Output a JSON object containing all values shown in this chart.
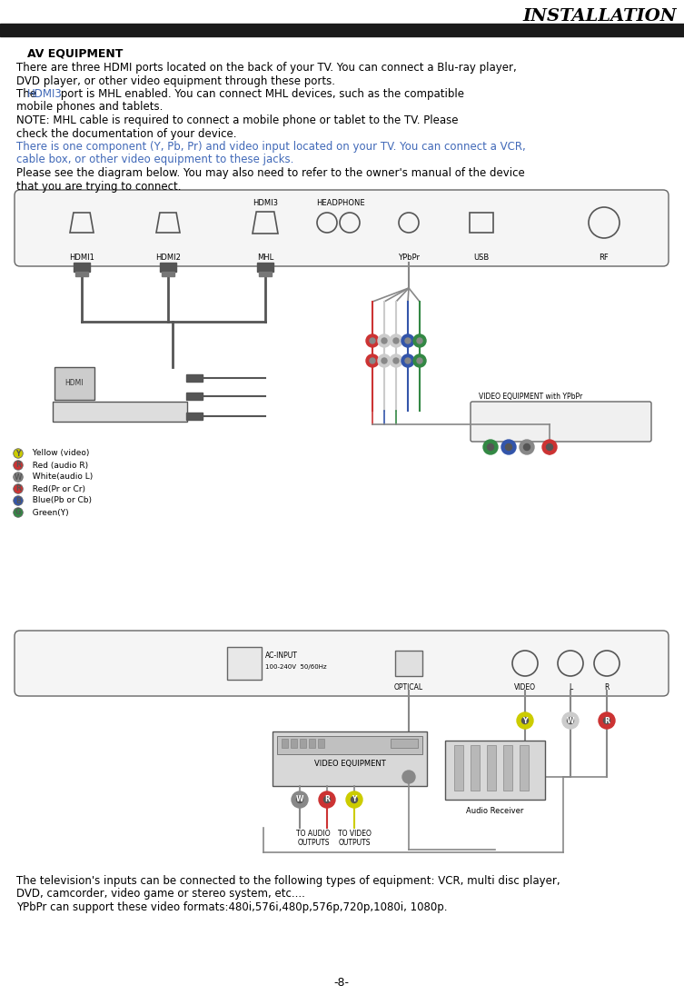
{
  "title": "INSTALLATION",
  "header_text": "AV EQUIPMENT",
  "para1": "There are three HDMI ports located on the back of your TV. You can connect a Blu-ray player,",
  "para1b": "DVD player, or other video equipment through these ports.",
  "para2_prefix": "The ",
  "para2_hdmi3": "HDMI3",
  "para2_suffix": " port is MHL enabled. You can connect MHL devices, such as the compatible",
  "para2c": "mobile phones and tablets.",
  "para3": "NOTE: MHL cable is required to connect a mobile phone or tablet to the TV. Please",
  "para3b": "check the documentation of your device.",
  "para4": "There is one component (Y, Pb, Pr) and video input located on your TV. You can connect a VCR,",
  "para4b": "cable box, or other video equipment to these jacks.",
  "para5": "Please see the diagram below. You may also need to refer to the owner's manual of the device",
  "para5b": "that you are trying to connect.",
  "bottom_para1": "The television's inputs can be connected to the following types of equipment: VCR, multi disc player,",
  "bottom_para1b": "DVD, camcorder, video game or stereo system, etc....",
  "bottom_para2": "YPbPr can support these video formats:480i,576i,480p,576p,720p,1080i, 1080p.",
  "page_num": "-8-",
  "bg_color": "#ffffff",
  "text_color": "#000000",
  "blue_color": "#4169b8",
  "header_bar_color": "#1a1a1a",
  "legend_items": [
    [
      "Y  Yellow (video)",
      "#cccc00"
    ],
    [
      "R  Red (audio R)",
      "#cc3333"
    ],
    [
      "W  White(audio L)",
      "#888888"
    ],
    [
      "R  Red(Pr or Cr)",
      "#cc3333"
    ],
    [
      "B  Blue(Pb or Cb)",
      "#3355aa"
    ],
    [
      "G  Green(Y)",
      "#338844"
    ]
  ]
}
